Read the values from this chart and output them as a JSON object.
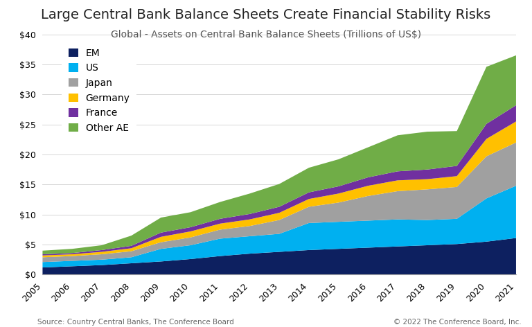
{
  "title": "Large Central Bank Balance Sheets Create Financial Stability Risks",
  "subtitle": "Global - Assets on Central Bank Balance Sheets (Trillions of US$)",
  "source_left": "Source: Country Central Banks, The Conference Board",
  "source_right": "© 2022 The Conference Board, Inc.",
  "years": [
    2005,
    2006,
    2007,
    2008,
    2009,
    2010,
    2011,
    2012,
    2013,
    2014,
    2015,
    2016,
    2017,
    2018,
    2019,
    2020,
    2021
  ],
  "series": {
    "EM": [
      1.2,
      1.4,
      1.6,
      1.9,
      2.2,
      2.6,
      3.1,
      3.5,
      3.8,
      4.1,
      4.3,
      4.5,
      4.7,
      4.9,
      5.1,
      5.5,
      6.1
    ],
    "US": [
      0.9,
      0.9,
      0.9,
      1.0,
      2.1,
      2.3,
      2.9,
      2.9,
      3.0,
      4.5,
      4.5,
      4.5,
      4.5,
      4.2,
      4.2,
      7.2,
      8.7
    ],
    "Japan": [
      0.8,
      0.8,
      0.9,
      1.0,
      1.1,
      1.3,
      1.5,
      1.7,
      2.3,
      2.7,
      3.2,
      4.1,
      4.7,
      5.1,
      5.3,
      7.0,
      7.2
    ],
    "Germany": [
      0.3,
      0.3,
      0.4,
      0.5,
      0.9,
      1.0,
      1.0,
      1.1,
      1.2,
      1.3,
      1.5,
      1.7,
      1.8,
      1.7,
      1.8,
      2.9,
      3.5
    ],
    "France": [
      0.2,
      0.2,
      0.3,
      0.4,
      0.7,
      0.7,
      0.8,
      0.9,
      1.0,
      1.1,
      1.2,
      1.4,
      1.5,
      1.6,
      1.7,
      2.5,
      2.7
    ],
    "Other AE": [
      0.6,
      0.7,
      0.8,
      1.7,
      2.5,
      2.5,
      2.8,
      3.4,
      3.8,
      4.1,
      4.5,
      5.0,
      6.0,
      6.3,
      5.8,
      9.5,
      8.3
    ]
  },
  "colors": {
    "EM": "#0d2060",
    "US": "#00b0f0",
    "Japan": "#a0a0a0",
    "Germany": "#ffc000",
    "France": "#7030a0",
    "Other AE": "#70ad47"
  },
  "ylim": [
    0,
    40
  ],
  "yticks": [
    0,
    5,
    10,
    15,
    20,
    25,
    30,
    35,
    40
  ],
  "background_color": "#ffffff",
  "title_fontsize": 14,
  "subtitle_fontsize": 10,
  "tick_fontsize": 9,
  "legend_fontsize": 10
}
